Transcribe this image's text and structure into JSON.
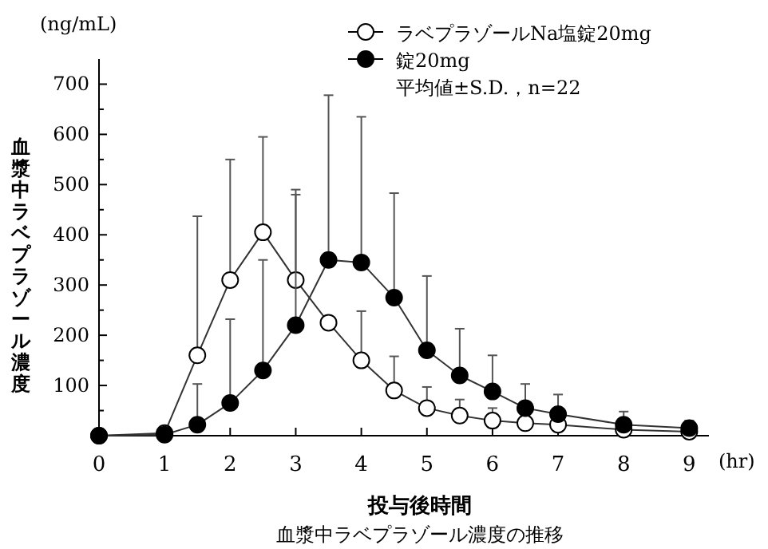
{
  "chart_data": {
    "type": "line",
    "title": "血漿中ラベプラゾール濃度の推移",
    "xlabel": "投与後時間",
    "ylabel": "血漿中ラベプラゾール濃度",
    "annotations": [
      "(ng/mL)",
      "(hr)",
      "平均値±S.D.，n=22"
    ],
    "xlim": [
      0,
      9.3
    ],
    "xticks": [
      0,
      1,
      2,
      3,
      4,
      5,
      6,
      7,
      8,
      9
    ],
    "ylim": [
      0,
      750
    ],
    "yticks": [
      {
        "value": 50,
        "label": null
      },
      100,
      {
        "value": 150,
        "label": null
      },
      200,
      {
        "value": 250,
        "label": null
      },
      300,
      {
        "value": 350,
        "label": null
      },
      400,
      {
        "value": 450,
        "label": null
      },
      500,
      {
        "value": 550,
        "label": null
      },
      600,
      {
        "value": 650,
        "label": null
      },
      700
    ],
    "x": [
      0,
      1,
      1.5,
      2,
      2.5,
      3,
      3.5,
      4,
      4.5,
      5,
      5.5,
      6,
      6.5,
      7,
      8,
      9
    ],
    "marker": "circle",
    "legend": "top right",
    "grid": false,
    "series": [
      {
        "name": "ラベプラゾールNa塩錠20mg",
        "color": "#ffffff",
        "values": [
          0,
          5,
          160,
          310,
          405,
          310,
          225,
          150,
          90,
          55,
          40,
          30,
          25,
          22,
          12,
          8
        ],
        "errors": [
          null,
          [
            5,
            15
          ],
          [
            160,
            437
          ],
          [
            310,
            550
          ],
          [
            405,
            595
          ],
          [
            310,
            480
          ],
          null,
          [
            150,
            248
          ],
          [
            90,
            158
          ],
          [
            55,
            97
          ],
          [
            40,
            72
          ],
          [
            30,
            55
          ],
          null,
          null,
          null,
          null
        ]
      },
      {
        "name": "錠20mg",
        "color": "#000000",
        "values": [
          0,
          2,
          22,
          65,
          130,
          220,
          350,
          345,
          275,
          170,
          120,
          88,
          55,
          43,
          22,
          15
        ],
        "errors": [
          null,
          null,
          [
            22,
            103
          ],
          [
            65,
            232
          ],
          [
            130,
            350
          ],
          [
            220,
            490
          ],
          [
            350,
            678
          ],
          [
            345,
            635
          ],
          [
            275,
            483
          ],
          [
            170,
            318
          ],
          [
            120,
            213
          ],
          [
            88,
            160
          ],
          [
            55,
            103
          ],
          [
            43,
            82
          ],
          [
            22,
            48
          ],
          [
            15,
            30
          ]
        ]
      }
    ]
  }
}
